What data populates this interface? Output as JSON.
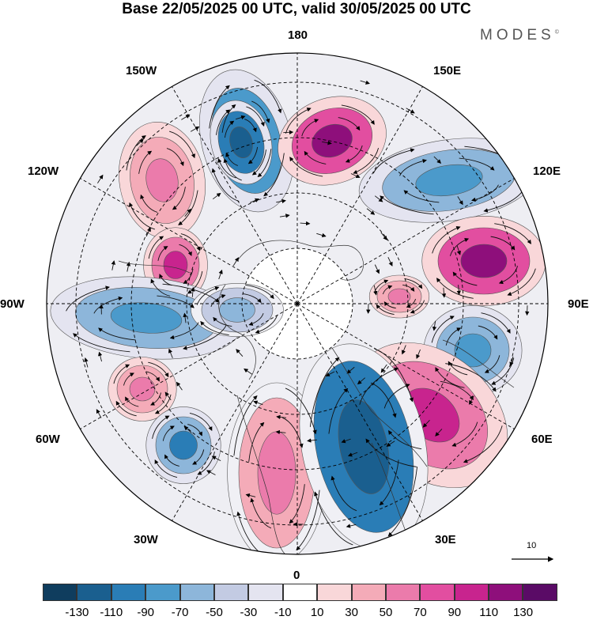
{
  "title": "Base 22/05/2025 00 UTC, valid 30/05/2025 00 UTC",
  "brand": "MODES",
  "brand_mark": "©",
  "longitude_labels": {
    "top": "180",
    "bottom": "0",
    "left": "90W",
    "right": "90E",
    "upper_left": "150W",
    "upper_right": "150E",
    "left_upper": "120W",
    "right_upper": "120E",
    "left_lower": "60W",
    "right_lower": "60E",
    "lower_left": "30W",
    "lower_right": "30E"
  },
  "reference_vector": {
    "label": "10"
  },
  "colorbar": {
    "colors": [
      "#0f3d5e",
      "#1a5f8f",
      "#2a7db6",
      "#4b9acb",
      "#8db6da",
      "#c3cbe3",
      "#e4e4f0",
      "#ffffff",
      "#f9d7d9",
      "#f4abb8",
      "#eb7bab",
      "#e24ea0",
      "#c8248e",
      "#8e0f7b",
      "#5a0b66"
    ],
    "tick_labels": [
      "-130",
      "-110",
      "-90",
      "-70",
      "-50",
      "-30",
      "-10",
      "10",
      "30",
      "50",
      "70",
      "90",
      "110",
      "130"
    ]
  },
  "anomalies": [
    {
      "sign": "neg",
      "level": "#4b9acb",
      "core": "#2a7db6"
    },
    {
      "sign": "pos",
      "level": "#e24ea0",
      "core": "#8e0f7b"
    },
    {
      "sign": "neg",
      "level": "#8db6da",
      "core": "#4b9acb"
    },
    {
      "sign": "pos",
      "level": "#f4abb8",
      "core": "#eb7bab"
    },
    {
      "sign": "pos",
      "level": "#e24ea0",
      "core": "#8e0f7b"
    },
    {
      "sign": "neg",
      "level": "#2a7db6",
      "core": "#1a5f8f"
    },
    {
      "sign": "pos",
      "level": "#eb7bab",
      "core": "#c8248e"
    },
    {
      "sign": "neg",
      "level": "#8db6da",
      "core": "#4b9acb"
    },
    {
      "sign": "pos",
      "level": "#f4abb8",
      "core": "#eb7bab"
    },
    {
      "sign": "neg",
      "level": "#8db6da",
      "core": "#4b9acb"
    },
    {
      "sign": "pos",
      "level": "#f4abb8",
      "core": "#eb7bab"
    },
    {
      "sign": "pos",
      "level": "#eb7bab",
      "core": "#c8248e"
    },
    {
      "sign": "neg",
      "level": "#8db6da",
      "core": "#2a7db6"
    }
  ]
}
